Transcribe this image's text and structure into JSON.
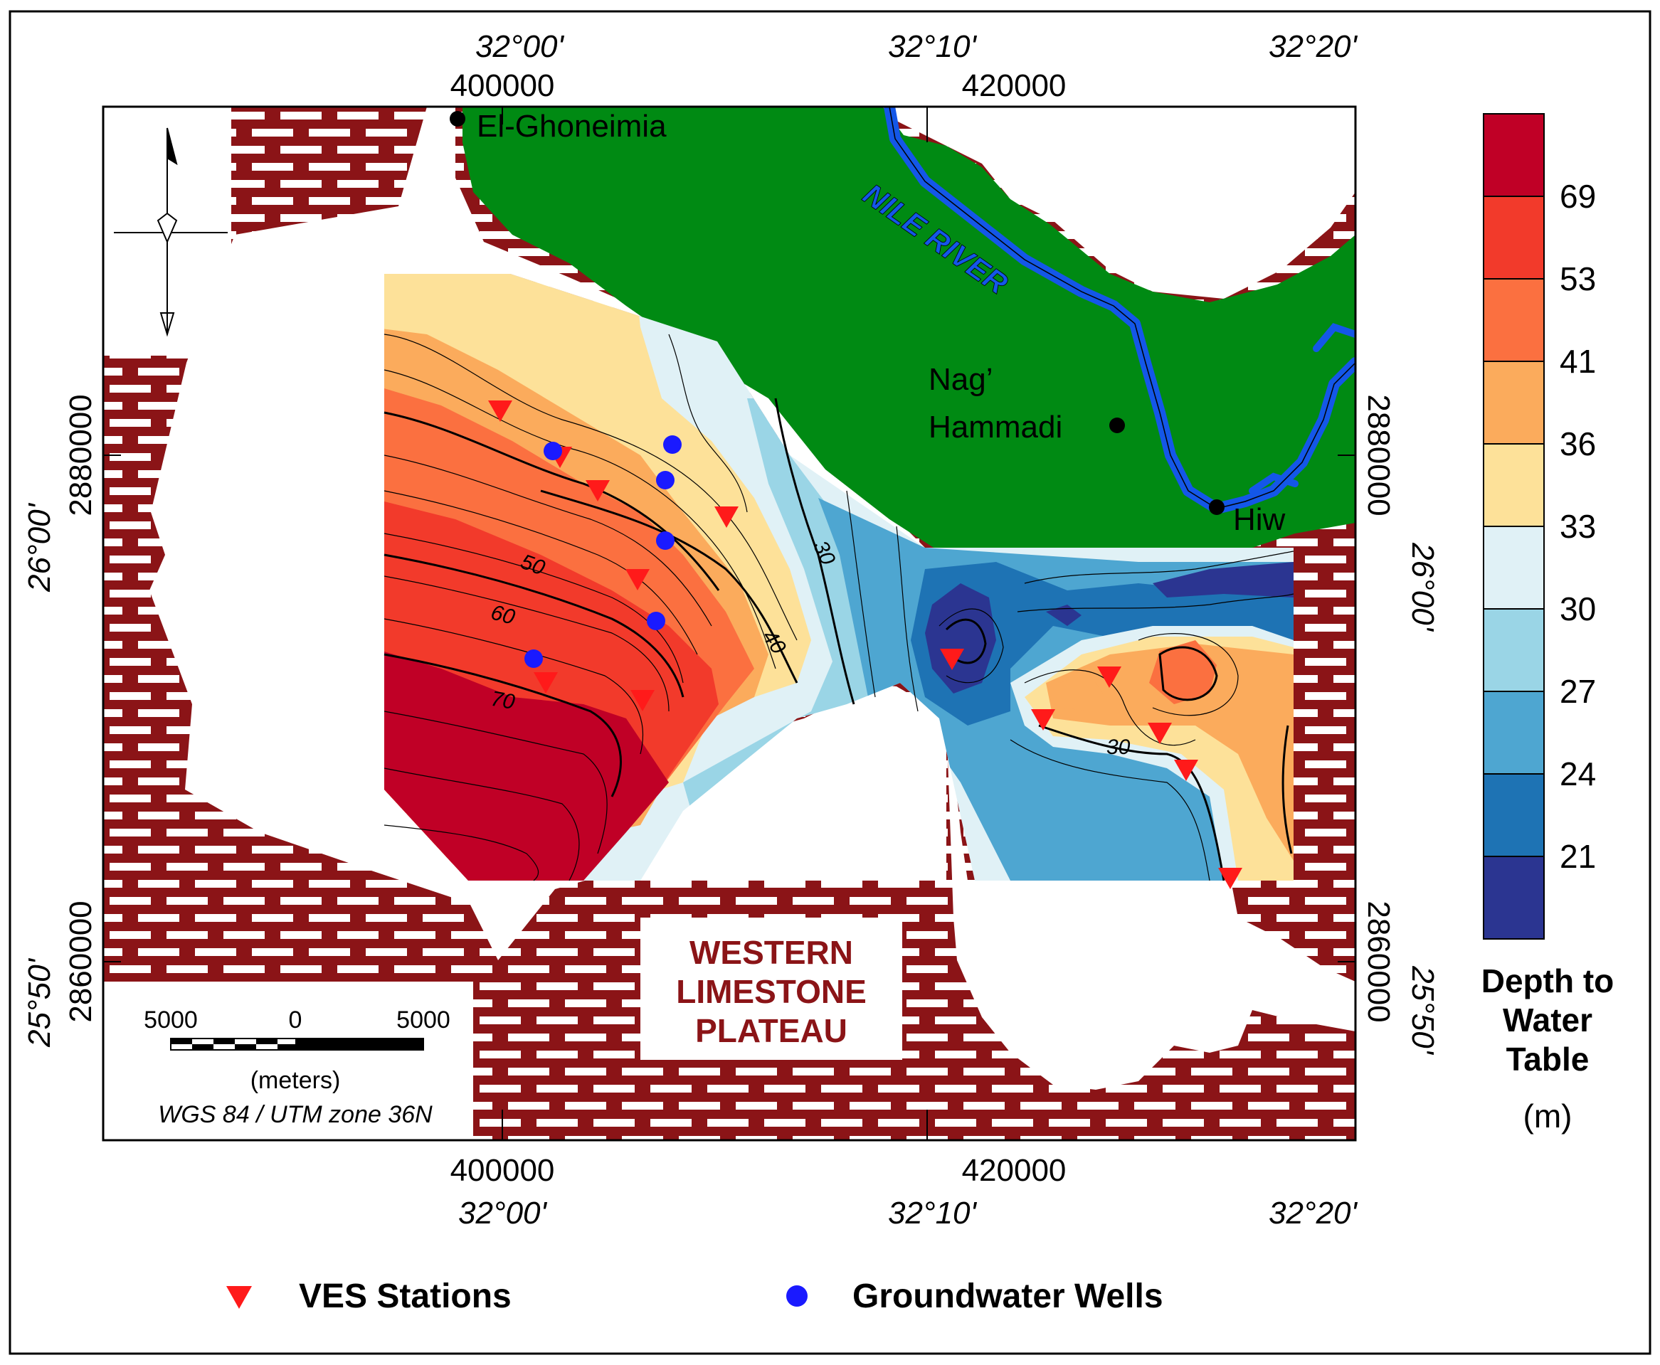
{
  "map": {
    "coords": {
      "top_lon": [
        "32°00'",
        "32°10'",
        "32°20'"
      ],
      "top_utm": [
        "400000",
        "420000"
      ],
      "bottom_utm": [
        "400000",
        "420000"
      ],
      "bottom_lon": [
        "32°00'",
        "32°10'",
        "32°20'"
      ],
      "left_utm": [
        "2880000",
        "2860000"
      ],
      "left_lat": [
        "26°00'",
        "25°50'"
      ],
      "right_utm": [
        "2880000",
        "2860000"
      ],
      "right_lat": [
        "26°00'",
        "25°50'"
      ]
    },
    "places": {
      "el_ghoneimia": "El-Ghoneimia",
      "nag_hammadi_1": "Nag’",
      "nag_hammadi_2": "Hammadi",
      "hiw": "Hiw",
      "nile_river": "NILE RIVER",
      "plateau_line1": "WESTERN",
      "plateau_line2": "LIMESTONE",
      "plateau_line3": "PLATEAU"
    },
    "contour_labels": [
      "50",
      "60",
      "70",
      "40",
      "30",
      "30"
    ],
    "scale_bar": {
      "left": "5000",
      "mid": "0",
      "right": "5000",
      "unit": "(meters)",
      "projection": "WGS 84 / UTM zone 36N"
    }
  },
  "color_scale": {
    "ticks": [
      "69",
      "53",
      "41",
      "36",
      "33",
      "30",
      "27",
      "24",
      "21"
    ],
    "colors": [
      "#c00026",
      "#f23a2b",
      "#fb7040",
      "#fbab5c",
      "#fde199",
      "#e0f1f6",
      "#9ad5e6",
      "#4ea6d1",
      "#1e73b4",
      "#2b3591"
    ],
    "title_line1": "Depth to",
    "title_line2": "Water",
    "title_line3": "Table",
    "unit": "(m)"
  },
  "legend": {
    "ves": "VES Stations",
    "wells": "Groundwater Wells"
  }
}
